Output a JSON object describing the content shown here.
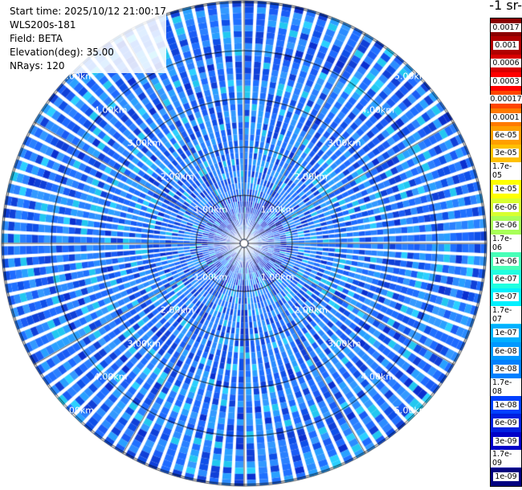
{
  "info": {
    "start_time": "Start time: 2025/10/12 21:00:17",
    "instrument": "WLS200s-181",
    "field": "Field: BETA",
    "elevation": "Elevation(deg): 35.00",
    "nrays": "NRays: 120"
  },
  "colorbar": {
    "title": "-1 sr-",
    "labels": [
      "0.0017",
      "0.001",
      "0.0006",
      "0.0003",
      "0.00017",
      "0.0001",
      "6e-05",
      "3e-05",
      "1.7e-05",
      "1e-05",
      "6e-06",
      "3e-06",
      "1.7e-06",
      "1e-06",
      "6e-07",
      "3e-07",
      "1.7e-07",
      "1e-07",
      "6e-08",
      "3e-08",
      "1.7e-08",
      "1e-08",
      "6e-09",
      "3e-09",
      "1.7e-09",
      "1e-09"
    ],
    "colors": [
      "#8b0000",
      "#b00000",
      "#d80000",
      "#ff0000",
      "#ff4500",
      "#ff7a00",
      "#ff9f00",
      "#ffc000",
      "#ffe000",
      "#ffff00",
      "#d8ff30",
      "#a8ff58",
      "#78ff88",
      "#48ffb8",
      "#20ffe0",
      "#00f0ff",
      "#00ccff",
      "#00b0ff",
      "#0098ff",
      "#0080ff",
      "#0060ff",
      "#0040ff",
      "#0020e0",
      "#0000c8",
      "#0000a0",
      "#000080"
    ]
  },
  "range_rings": {
    "labels": [
      "1.00km",
      "2.00km",
      "3.00km",
      "4.00km",
      "5.00km"
    ]
  }
}
